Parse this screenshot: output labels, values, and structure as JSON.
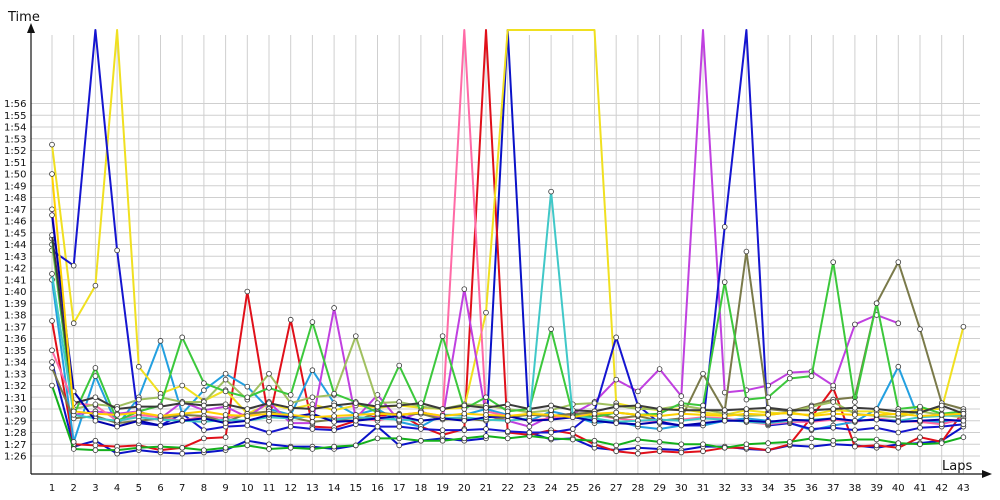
{
  "chart_data": {
    "type": "line",
    "title": "",
    "ylabel": "Time",
    "xlabel": "Laps",
    "x": [
      1,
      2,
      3,
      4,
      5,
      6,
      7,
      8,
      9,
      10,
      11,
      12,
      13,
      14,
      15,
      16,
      17,
      18,
      19,
      20,
      21,
      22,
      23,
      24,
      25,
      26,
      27,
      28,
      29,
      30,
      31,
      32,
      33,
      34,
      35,
      36,
      37,
      38,
      39,
      40,
      41,
      42,
      43
    ],
    "yticks": [
      "1:26",
      "1:27",
      "1:28",
      "1:29",
      "1:30",
      "1:31",
      "1:32",
      "1:33",
      "1:34",
      "1:35",
      "1:36",
      "1:37",
      "1:38",
      "1:39",
      "1:40",
      "1:41",
      "1:42",
      "1:43",
      "1:44",
      "1:45",
      "1:46",
      "1:47",
      "1:48",
      "1:49",
      "1:50",
      "1:51",
      "1:52",
      "1:53",
      "1:54",
      "1:55",
      "1:56"
    ],
    "ylim_seconds": [
      84.6,
      119.5
    ],
    "grid": true,
    "series": [
      {
        "color": "#0a12c8",
        "values": [
          94,
          86.8,
          87.3,
          86.2,
          86.5,
          86.3,
          86.2,
          86.3,
          86.5,
          87.3,
          87.0,
          86.8,
          86.8,
          86.6,
          86.9,
          88.5,
          86.9,
          87.3,
          87.5,
          87.3,
          87.5,
          200,
          88.0,
          87.4,
          87.5,
          86.7,
          86.5,
          86.7,
          86.6,
          86.5,
          86.8,
          86.8,
          86.6,
          86.5,
          86.9,
          86.8,
          87.0,
          86.9,
          86.7,
          87.0,
          87.1,
          87.3,
          88.5
        ]
      },
      {
        "color": "#e0101a",
        "values": [
          97.5,
          87.0,
          86.9,
          86.8,
          86.9,
          86.5,
          86.7,
          87.5,
          87.6,
          100,
          89.0,
          97.6,
          88.5,
          88.4,
          89.0,
          89.4,
          89.6,
          88.5,
          87.8,
          88.3,
          200,
          88.0,
          87.8,
          88.2,
          87.9,
          87.0,
          86.4,
          86.2,
          86.4,
          86.3,
          86.4,
          86.7,
          86.7,
          86.5,
          87.0,
          89.3,
          91.8,
          86.8,
          86.9,
          86.7,
          87.6,
          87.2,
          89.8
        ]
      },
      {
        "color": "#14b01c",
        "values": [
          92.0,
          86.6,
          86.5,
          86.5,
          86.7,
          86.8,
          86.7,
          86.5,
          86.7,
          86.9,
          86.6,
          86.7,
          86.6,
          86.8,
          86.9,
          87.5,
          87.5,
          87.3,
          87.3,
          87.5,
          87.7,
          87.5,
          87.7,
          87.5,
          87.4,
          87.3,
          86.9,
          87.4,
          87.2,
          87.0,
          87.0,
          86.7,
          87.0,
          87.1,
          87.2,
          87.5,
          87.3,
          87.4,
          87.4,
          87.1,
          87.0,
          87.1,
          87.6
        ]
      },
      {
        "color": "#23a0e0",
        "values": [
          101,
          87.2,
          92.8,
          88.6,
          91.0,
          95.8,
          89.6,
          91.6,
          93.0,
          91.9,
          90.0,
          89.5,
          93.3,
          90.5,
          89.5,
          90.0,
          88.9,
          88.5,
          89.5,
          89.5,
          90.0,
          89.5,
          89.0,
          89.8,
          89.4,
          88.8,
          89.0,
          88.5,
          88.3,
          88.6,
          88.6,
          89.0,
          89.2,
          89.0,
          88.8,
          88.2,
          88.6,
          88.9,
          90.0,
          93.6,
          88.9,
          88.9,
          89.0
        ]
      },
      {
        "color": "#f0e020",
        "values": [
          112.5,
          97.3,
          100.5,
          200,
          93.6,
          91.3,
          92.0,
          90.7,
          91.6,
          89.6,
          90.4,
          90.0,
          90.4,
          89.9,
          90.3,
          90.1,
          90.3,
          90.1,
          90.0,
          90.1,
          98.2,
          200,
          200,
          200,
          200,
          200,
          90.5,
          90.1,
          89.9,
          90.0,
          89.7,
          89.5,
          89.9,
          89.7,
          89.6,
          89.5,
          89.9,
          89.8,
          89.8,
          89.5,
          90.0,
          90.0,
          97.0
        ]
      },
      {
        "color": "#c040e0",
        "values": [
          107,
          89.5,
          89.8,
          89.6,
          89.8,
          89.2,
          90.6,
          89.9,
          90.2,
          89.3,
          90.6,
          88.8,
          88.8,
          98.6,
          89.2,
          91.2,
          89.0,
          89.8,
          89.2,
          100.2,
          89.5,
          89.0,
          88.5,
          89.4,
          89.6,
          90.6,
          92.5,
          91.5,
          93.4,
          91.1,
          200,
          91.4,
          91.6,
          92.0,
          93.1,
          93.2,
          92.0,
          97.2,
          98.0,
          97.3,
          null,
          null,
          null
        ]
      },
      {
        "color": "#1515d0",
        "values": [
          103.5,
          102.2,
          200,
          103.5,
          88.8,
          88.6,
          89.6,
          88.2,
          88.5,
          88.6,
          88.0,
          88.5,
          88.3,
          88.2,
          88.7,
          88.5,
          88.5,
          88.3,
          88.2,
          88.2,
          88.3,
          88.1,
          88.0,
          88.0,
          88.3,
          89.8,
          96.1,
          90.3,
          88.8,
          88.6,
          88.6,
          105.5,
          200,
          88.6,
          88.8,
          88.3,
          88.4,
          88.2,
          88.4,
          88.0,
          88.4,
          88.5,
          88.7
        ]
      },
      {
        "color": "#ff6aa6",
        "values": [
          95.0,
          90.5,
          90.3,
          89.0,
          89.5,
          89.3,
          89.0,
          89.4,
          89.2,
          89.6,
          89.5,
          89.3,
          89.4,
          89.2,
          89.3,
          89.0,
          89.5,
          89.7,
          89.4,
          200,
          89.8,
          89.4,
          89.0,
          89.2,
          89.6,
          89.5,
          89.2,
          89.0,
          89.0,
          89.1,
          89.3,
          89.2,
          88.9,
          88.7,
          88.9,
          88.9,
          89.1,
          88.9,
          89.2,
          89.0,
          88.9,
          88.7,
          89.2
        ]
      },
      {
        "color": "#7a7a4a",
        "values": [
          93.5,
          89.2,
          89.4,
          88.8,
          89.0,
          89.2,
          89.5,
          89.4,
          88.9,
          89.6,
          89.8,
          89.3,
          88.9,
          89.1,
          89.0,
          89.7,
          89.5,
          89.6,
          89.1,
          89.2,
          89.0,
          89.3,
          89.5,
          89.4,
          89.6,
          89.7,
          89.2,
          89.4,
          89.0,
          89.2,
          93.0,
          89.8,
          103.4,
          90.0,
          89.8,
          90.3,
          90.8,
          91.0,
          99.0,
          102.5,
          96.8,
          90.5,
          90.0
        ]
      },
      {
        "color": "#a0c060",
        "values": [
          104,
          90.0,
          90.4,
          90.2,
          90.8,
          91.0,
          90.6,
          90.6,
          92.5,
          90.8,
          93.0,
          90.5,
          91.0,
          91.2,
          96.2,
          90.5,
          90.6,
          90.2,
          90.0,
          90.4,
          90.3,
          90.0,
          89.7,
          89.9,
          90.4,
          90.5,
          90.3,
          90.0,
          90.0,
          90.3,
          90.0,
          89.6,
          89.4,
          89.5,
          89.7,
          90.2,
          90.6,
          89.6,
          89.4,
          89.3,
          89.8,
          89.5,
          89.3
        ]
      },
      {
        "color": "#3cc83c",
        "values": [
          104.5,
          89.5,
          93.5,
          89.0,
          89.8,
          90.3,
          96.1,
          92.2,
          91.5,
          91.0,
          91.8,
          91.2,
          97.4,
          91.3,
          90.6,
          89.7,
          93.7,
          89.8,
          96.2,
          90.0,
          91.0,
          89.8,
          90.0,
          96.8,
          89.5,
          89.3,
          89.7,
          89.5,
          89.6,
          90.5,
          90.3,
          100.8,
          90.8,
          91.0,
          92.6,
          92.8,
          102.5,
          90.6,
          99.0,
          90.0,
          90.2,
          89.6,
          89.8
        ]
      },
      {
        "color": "#3a3a3a",
        "values": [
          104.8,
          90.5,
          91.0,
          90.0,
          90.2,
          90.2,
          90.5,
          90.3,
          90.4,
          90.0,
          90.5,
          90.1,
          90.0,
          90.3,
          90.5,
          90.2,
          90.3,
          90.5,
          90.0,
          90.3,
          90.1,
          90.4,
          90.0,
          90.3,
          89.9,
          89.8,
          90.2,
          90.3,
          90.0,
          89.9,
          89.9,
          89.9,
          90.0,
          90.1,
          89.9,
          89.9,
          90.0,
          90.1,
          90.0,
          89.8,
          89.7,
          90.3,
          89.6
        ]
      },
      {
        "color": "#40c8c8",
        "values": [
          101.5,
          89.5,
          89.2,
          89.0,
          89.3,
          89.1,
          89.0,
          88.9,
          89.1,
          89.0,
          89.3,
          89.2,
          89.4,
          89.1,
          89.3,
          89.2,
          89.1,
          89.0,
          89.2,
          89.3,
          89.1,
          89.0,
          89.2,
          108.5,
          89.4,
          89.2,
          88.9,
          89.0,
          89.1,
          89.0,
          89.2,
          89.1,
          88.9,
          88.8,
          89.0,
          89.1,
          89.2,
          89.0,
          89.1,
          89.0,
          89.3,
          89.4,
          89.5
        ]
      },
      {
        "color": "#0000aa",
        "values": [
          106.5,
          91.5,
          89.0,
          88.5,
          89.0,
          88.6,
          89.0,
          89.2,
          88.8,
          89.0,
          89.5,
          89.3,
          89.6,
          88.9,
          89.0,
          89.2,
          89.4,
          89.0,
          89.2,
          89.0,
          89.3,
          89.4,
          89.0,
          89.1,
          89.3,
          89.0,
          88.8,
          88.7,
          88.9,
          88.6,
          88.8,
          89.0,
          89.0,
          88.9,
          89.1,
          89.0,
          89.2,
          89.0,
          89.1,
          88.9,
          89.0,
          89.1,
          89.0
        ]
      },
      {
        "color": "#ffd000",
        "values": [
          110,
          89.8,
          89.6,
          89.5,
          89.7,
          89.4,
          89.6,
          89.8,
          89.5,
          89.4,
          89.6,
          89.5,
          89.3,
          89.4,
          89.5,
          89.6,
          89.5,
          89.7,
          89.4,
          89.6,
          89.5,
          89.4,
          89.6,
          89.5,
          89.3,
          89.6,
          89.7,
          89.5,
          89.4,
          89.6,
          89.5,
          89.4,
          89.6,
          89.5,
          89.7,
          89.4,
          89.6,
          89.5,
          89.5,
          89.6,
          89.4,
          89.5,
          89.6
        ]
      }
    ]
  }
}
